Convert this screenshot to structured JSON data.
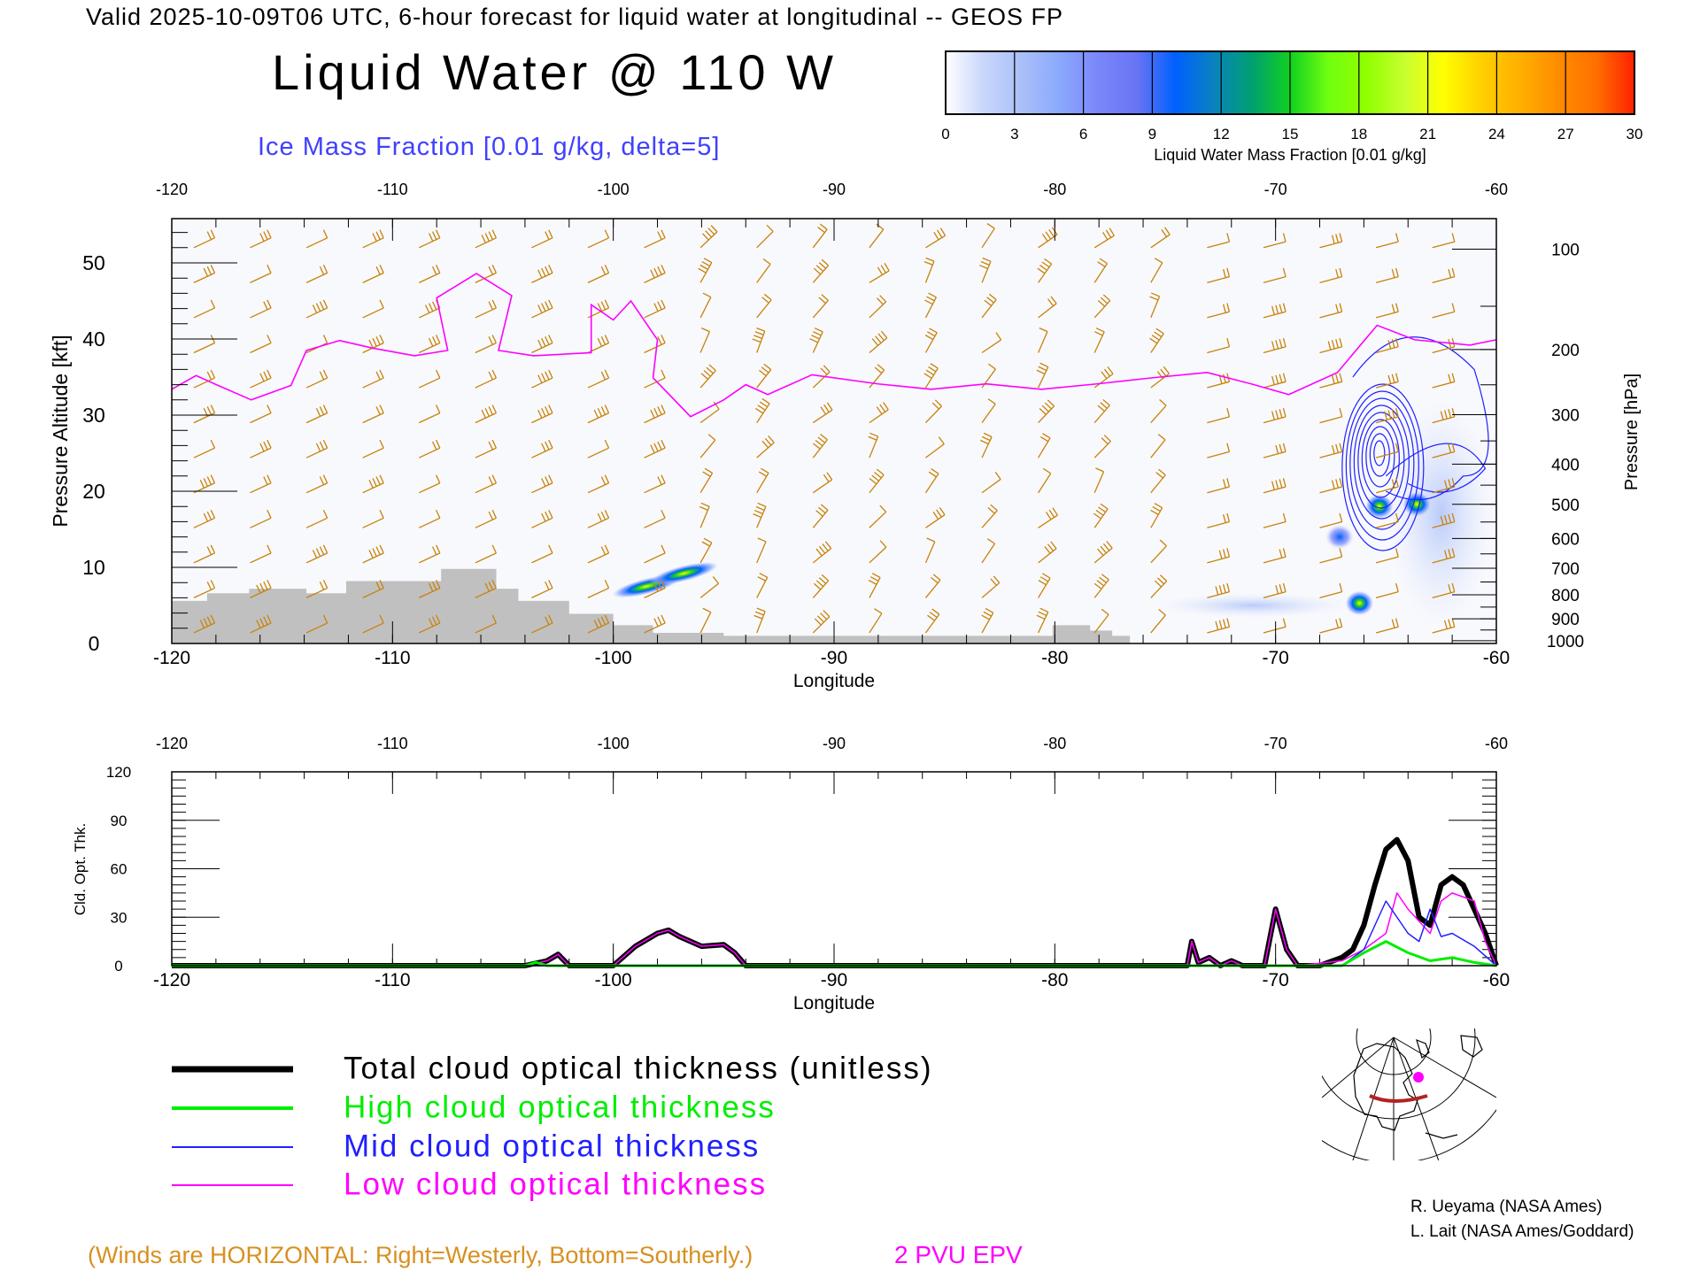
{
  "header": {
    "valid_line": "Valid 2025-10-09T06 UTC, 6-hour forecast for liquid water at longitudinal -- GEOS FP",
    "title": "Liquid Water @ 110 W",
    "subtitle": "Ice Mass Fraction [0.01 g/kg, delta=5]"
  },
  "colorbar": {
    "ticks": [
      "0",
      "3",
      "6",
      "9",
      "12",
      "15",
      "18",
      "21",
      "24",
      "27",
      "30"
    ],
    "label": "Liquid Water Mass Fraction [0.01 g/kg]",
    "colors": [
      "#ffffff",
      "#c8d6fb",
      "#aabff9",
      "#8aa8fd",
      "#7a86fa",
      "#6874f4",
      "#0060ff",
      "#0a82c0",
      "#00a070",
      "#10d020",
      "#70ff10",
      "#90ff00",
      "#c8ff30",
      "#ffff00",
      "#ffd000",
      "#ffb000",
      "#ff8c00",
      "#ff7000",
      "#ff2000"
    ]
  },
  "main_plot": {
    "top_ticks": [
      "-120",
      "-110",
      "-100",
      "-90",
      "-80",
      "-70",
      "-60"
    ],
    "bottom_ticks": [
      "-120",
      "-110",
      "-100",
      "-90",
      "-80",
      "-70",
      "-60"
    ],
    "xlabel": "Longitude",
    "ylabel_left": "Pressure Altitude [kft]",
    "left_ticks": [
      "0",
      "10",
      "20",
      "30",
      "40",
      "50"
    ],
    "ylabel_right": "Pressure [hPa]",
    "right_ticks": [
      "100",
      "200",
      "300",
      "400",
      "500",
      "600",
      "700",
      "800",
      "900",
      "1000"
    ]
  },
  "chart_data": [
    {
      "type": "heatmap",
      "title": "Liquid Water @ 110 W",
      "xlabel": "Longitude",
      "ylabel": "Pressure Altitude [kft]",
      "xlim": [
        -120,
        -60
      ],
      "ylim": [
        0,
        55.8
      ],
      "terrain_kft": [
        [
          -120,
          5.6
        ],
        [
          -118.4,
          6.6
        ],
        [
          -116.5,
          7.2
        ],
        [
          -113.9,
          6.6
        ],
        [
          -112.1,
          8.2
        ],
        [
          -107.8,
          9.8
        ],
        [
          -105.3,
          7.2
        ],
        [
          -104.3,
          5.6
        ],
        [
          -102,
          3.9
        ],
        [
          -100,
          2.4
        ],
        [
          -98.2,
          1.4
        ],
        [
          -95,
          1.0
        ],
        [
          -80.1,
          2.4
        ],
        [
          -78.4,
          1.7
        ],
        [
          -77.4,
          1.0
        ],
        [
          -76.6,
          0
        ]
      ],
      "pv_2pvu_kft": [
        [
          -120,
          33.4
        ],
        [
          -118.9,
          35.2
        ],
        [
          -117.9,
          33.9
        ],
        [
          -116.4,
          32
        ],
        [
          -114.6,
          33.9
        ],
        [
          -113.9,
          38.5
        ],
        [
          -112.4,
          39.8
        ],
        [
          -110.9,
          38.8
        ],
        [
          -109,
          37.8
        ],
        [
          -107.5,
          38.5
        ],
        [
          -108,
          45.4
        ],
        [
          -106.2,
          48.6
        ],
        [
          -104.6,
          45.7
        ],
        [
          -105.2,
          38.5
        ],
        [
          -103.6,
          37.8
        ],
        [
          -101,
          38.2
        ],
        [
          -101,
          44.5
        ],
        [
          -100,
          42.5
        ],
        [
          -99.2,
          45
        ],
        [
          -98,
          39.9
        ],
        [
          -98.2,
          34.9
        ],
        [
          -96.5,
          29.8
        ],
        [
          -95,
          32
        ],
        [
          -94,
          34
        ],
        [
          -93,
          32.7
        ],
        [
          -91,
          35.3
        ],
        [
          -88,
          34.1
        ],
        [
          -85.6,
          33.4
        ],
        [
          -83.1,
          34.1
        ],
        [
          -80.6,
          33.4
        ],
        [
          -78.1,
          34.1
        ],
        [
          -75.6,
          34.9
        ],
        [
          -73.1,
          35.6
        ],
        [
          -71.1,
          34.1
        ],
        [
          -69.4,
          32.7
        ],
        [
          -67.2,
          35.6
        ],
        [
          -65.4,
          41.8
        ],
        [
          -63.7,
          39.9
        ],
        [
          -61.2,
          39.2
        ],
        [
          -60,
          39.9
        ]
      ],
      "liquid_water_maxima": [
        {
          "lon": -98.5,
          "kft": 7.5,
          "value": 16
        },
        {
          "lon": -96.8,
          "kft": 9.2,
          "value": 14
        },
        {
          "lon": -66.2,
          "kft": 5.3,
          "value": 18
        },
        {
          "lon": -65.3,
          "kft": 18,
          "value": 16
        },
        {
          "lon": -63.6,
          "kft": 18.3,
          "value": 14
        },
        {
          "lon": -67.1,
          "kft": 14,
          "value": 10
        }
      ],
      "ice_max": {
        "lon": -65.3,
        "kft": 25
      }
    },
    {
      "type": "line",
      "ylabel": "Cld. Opt. Thk.",
      "xlabel": "Longitude",
      "xlim": [
        -120,
        -60
      ],
      "ylim": [
        0,
        120
      ],
      "yticks": [
        "0",
        "30",
        "60",
        "90",
        "120"
      ],
      "series": [
        {
          "name": "Total cloud optical thickness (unitless)",
          "color": "#000000",
          "points": [
            [
              -120,
              0
            ],
            [
              -104,
              0
            ],
            [
              -103,
              3
            ],
            [
              -102.5,
              7
            ],
            [
              -102,
              0
            ],
            [
              -100,
              0
            ],
            [
              -99,
              12
            ],
            [
              -98,
              20
            ],
            [
              -97.5,
              22
            ],
            [
              -97,
              18
            ],
            [
              -96,
              12
            ],
            [
              -95,
              13
            ],
            [
              -94.5,
              8
            ],
            [
              -94,
              0
            ],
            [
              -74,
              0
            ],
            [
              -73.8,
              15
            ],
            [
              -73.5,
              2
            ],
            [
              -73,
              5
            ],
            [
              -72.5,
              0
            ],
            [
              -72,
              3
            ],
            [
              -71.5,
              0
            ],
            [
              -70.5,
              0
            ],
            [
              -70,
              35
            ],
            [
              -69.5,
              10
            ],
            [
              -69,
              0
            ],
            [
              -68,
              0
            ],
            [
              -67,
              5
            ],
            [
              -66.5,
              10
            ],
            [
              -66,
              25
            ],
            [
              -65.5,
              50
            ],
            [
              -65,
              72
            ],
            [
              -64.5,
              78
            ],
            [
              -64,
              65
            ],
            [
              -63.5,
              30
            ],
            [
              -63,
              25
            ],
            [
              -62.5,
              50
            ],
            [
              -62,
              55
            ],
            [
              -61.5,
              50
            ],
            [
              -61,
              35
            ],
            [
              -60.5,
              20
            ],
            [
              -60,
              0
            ]
          ]
        },
        {
          "name": "High cloud optical thickness",
          "color": "#00ee00",
          "points": [
            [
              -120,
              0
            ],
            [
              -104,
              0
            ],
            [
              -103.5,
              2
            ],
            [
              -103,
              0
            ],
            [
              -67,
              0
            ],
            [
              -66,
              8
            ],
            [
              -65,
              15
            ],
            [
              -64,
              8
            ],
            [
              -63,
              3
            ],
            [
              -62,
              5
            ],
            [
              -61,
              2
            ],
            [
              -60,
              0
            ]
          ]
        },
        {
          "name": "Mid cloud optical thickness",
          "color": "#2020ff",
          "points": [
            [
              -120,
              0
            ],
            [
              -67,
              0
            ],
            [
              -66,
              10
            ],
            [
              -65.5,
              25
            ],
            [
              -65,
              40
            ],
            [
              -64.5,
              30
            ],
            [
              -64,
              20
            ],
            [
              -63.5,
              15
            ],
            [
              -63,
              35
            ],
            [
              -62.5,
              18
            ],
            [
              -62,
              20
            ],
            [
              -61,
              12
            ],
            [
              -60,
              0
            ]
          ]
        },
        {
          "name": "Low cloud optical thickness",
          "color": "#ff00ff",
          "points": [
            [
              -120,
              0
            ],
            [
              -104,
              0
            ],
            [
              -103,
              3
            ],
            [
              -102.5,
              7
            ],
            [
              -102,
              0
            ],
            [
              -100,
              0
            ],
            [
              -99,
              12
            ],
            [
              -98,
              20
            ],
            [
              -97.5,
              22
            ],
            [
              -97,
              18
            ],
            [
              -96,
              12
            ],
            [
              -95,
              13
            ],
            [
              -94.5,
              8
            ],
            [
              -94,
              0
            ],
            [
              -74,
              0
            ],
            [
              -73.8,
              15
            ],
            [
              -73.5,
              2
            ],
            [
              -73,
              5
            ],
            [
              -72.5,
              0
            ],
            [
              -72,
              3
            ],
            [
              -71.5,
              0
            ],
            [
              -70.5,
              0
            ],
            [
              -70,
              35
            ],
            [
              -69.5,
              10
            ],
            [
              -69,
              0
            ],
            [
              -67,
              3
            ],
            [
              -66,
              10
            ],
            [
              -65,
              20
            ],
            [
              -64.5,
              45
            ],
            [
              -64,
              35
            ],
            [
              -63,
              20
            ],
            [
              -62.5,
              40
            ],
            [
              -62,
              45
            ],
            [
              -61,
              40
            ],
            [
              -60.5,
              15
            ],
            [
              -60,
              0
            ]
          ]
        }
      ]
    }
  ],
  "lower_plot": {
    "top_ticks": [
      "-120",
      "-110",
      "-100",
      "-90",
      "-80",
      "-70",
      "-60"
    ],
    "bottom_ticks": [
      "-120",
      "-110",
      "-100",
      "-90",
      "-80",
      "-70",
      "-60"
    ],
    "xlabel": "Longitude",
    "ylabel": "Cld. Opt. Thk.",
    "yticks": [
      "0",
      "30",
      "60",
      "90",
      "120"
    ]
  },
  "legend": [
    {
      "label": "Total cloud optical thickness (unitless)",
      "color": "#000000"
    },
    {
      "label": "High cloud optical thickness",
      "color": "#00ee00"
    },
    {
      "label": "Mid cloud optical thickness",
      "color": "#2020ff"
    },
    {
      "label": "Low cloud optical thickness",
      "color": "#ff00ff"
    }
  ],
  "credits": [
    "R. Ueyama (NASA Ames)",
    "L. Lait (NASA Ames/Goddard)"
  ],
  "footer": {
    "winds_note": "(Winds are HORIZONTAL: Right=Westerly, Bottom=Southerly.)",
    "pv_label": "2 PVU EPV"
  },
  "colors": {
    "wind": "#c8820a",
    "pv": "#ff00ff",
    "ice": "#2020ff",
    "terrain": "#c0c0c0",
    "section": "#b22222"
  }
}
